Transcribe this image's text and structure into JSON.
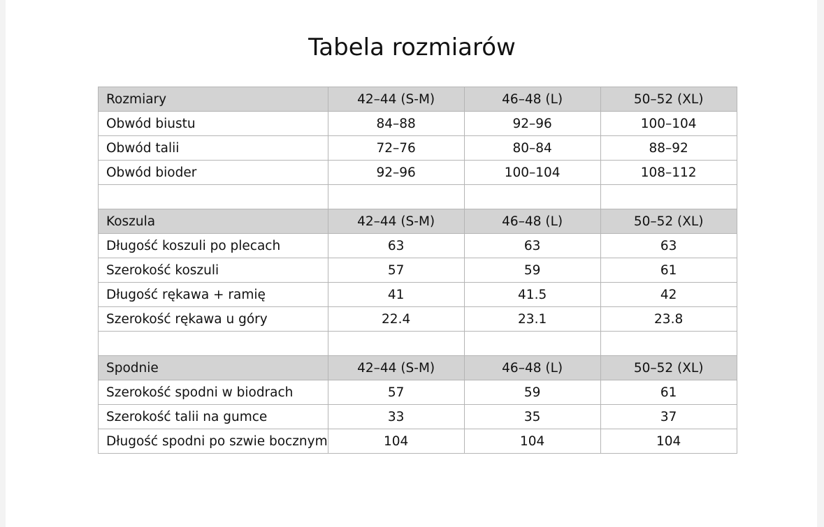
{
  "title": "Tabela rozmiarów",
  "sections": [
    {
      "header": [
        "Rozmiary",
        "42–44 (S-M)",
        "46–48 (L)",
        "50–52 (XL)"
      ],
      "rows": [
        [
          "Obwód biustu",
          "84–88",
          "92–96",
          "100–104"
        ],
        [
          "Obwód talii",
          "72–76",
          "80–84",
          "88–92"
        ],
        [
          "Obwód bioder",
          "92–96",
          "100–104",
          "108–112"
        ]
      ]
    },
    {
      "header": [
        "Koszula",
        "42–44 (S-M)",
        "46–48 (L)",
        "50–52 (XL)"
      ],
      "rows": [
        [
          "Długość koszuli po plecach",
          "63",
          "63",
          "63"
        ],
        [
          "Szerokość koszuli",
          "57",
          "59",
          "61"
        ],
        [
          "Długość rękawa + ramię",
          "41",
          "41.5",
          "42"
        ],
        [
          "Szerokość rękawa u góry",
          "22.4",
          "23.1",
          "23.8"
        ]
      ]
    },
    {
      "header": [
        "Spodnie",
        "42–44 (S-M)",
        "46–48 (L)",
        "50–52 (XL)"
      ],
      "rows": [
        [
          "Szerokość spodni w biodrach",
          "57",
          "59",
          "61"
        ],
        [
          "Szerokość talii na gumce",
          "33",
          "35",
          "37"
        ],
        [
          "Długość spodni po szwie bocznym",
          "104",
          "104",
          "104"
        ]
      ]
    }
  ],
  "colors": {
    "header_fill": "#d3d3d3",
    "border": "#b5b5b5"
  }
}
